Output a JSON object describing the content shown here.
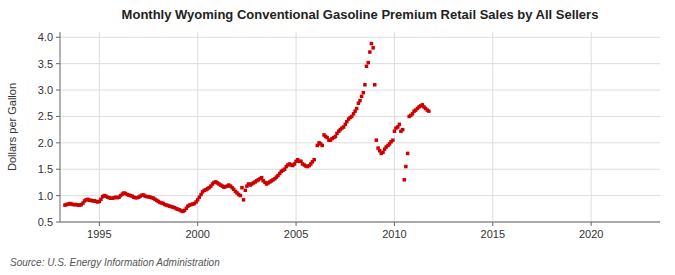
{
  "chart_data": {
    "type": "scatter",
    "title": "Monthly Wyoming Conventional Gasoline Premium Retail Sales by All Sellers",
    "ylabel": "Dollars per Gallon",
    "annotation": "Source: U.S. Energy Information Administration",
    "color": "#cc0000",
    "marker": "square",
    "grid": true,
    "xlim": [
      1993.0,
      2023.5
    ],
    "ylim": [
      0.5,
      4.1
    ],
    "xticks": [
      1995,
      2000,
      2005,
      2010,
      2015,
      2020
    ],
    "yticks": [
      0.5,
      {
        "value": 1.0,
        "label": "1.0"
      },
      1.5,
      {
        "value": 2.0,
        "label": "2.0"
      },
      2.5,
      {
        "value": 3.0,
        "label": "3.0"
      },
      3.5,
      {
        "value": 4.0,
        "label": "4.0"
      }
    ],
    "x": [
      1993.25,
      1993.33,
      1993.42,
      1993.5,
      1993.58,
      1993.67,
      1993.75,
      1993.83,
      1993.92,
      1994.0,
      1994.08,
      1994.17,
      1994.25,
      1994.33,
      1994.42,
      1994.5,
      1994.58,
      1994.67,
      1994.75,
      1994.83,
      1994.92,
      1995.0,
      1995.08,
      1995.17,
      1995.25,
      1995.33,
      1995.42,
      1995.5,
      1995.58,
      1995.67,
      1995.75,
      1995.83,
      1995.92,
      1996.0,
      1996.08,
      1996.17,
      1996.25,
      1996.33,
      1996.42,
      1996.5,
      1996.58,
      1996.67,
      1996.75,
      1996.83,
      1996.92,
      1997.0,
      1997.08,
      1997.17,
      1997.25,
      1997.33,
      1997.42,
      1997.5,
      1997.58,
      1997.67,
      1997.75,
      1997.83,
      1997.92,
      1998.0,
      1998.08,
      1998.17,
      1998.25,
      1998.33,
      1998.42,
      1998.5,
      1998.58,
      1998.67,
      1998.75,
      1998.83,
      1998.92,
      1999.0,
      1999.08,
      1999.17,
      1999.25,
      1999.33,
      1999.42,
      1999.5,
      1999.58,
      1999.67,
      1999.75,
      1999.83,
      1999.92,
      2000.0,
      2000.08,
      2000.17,
      2000.25,
      2000.33,
      2000.42,
      2000.5,
      2000.58,
      2000.67,
      2000.75,
      2000.83,
      2000.92,
      2001.0,
      2001.08,
      2001.17,
      2001.25,
      2001.33,
      2001.42,
      2001.5,
      2001.58,
      2001.67,
      2001.75,
      2001.83,
      2001.92,
      2002.0,
      2002.08,
      2002.17,
      2002.25,
      2002.33,
      2002.42,
      2002.5,
      2002.58,
      2002.67,
      2002.75,
      2002.83,
      2002.92,
      2003.0,
      2003.08,
      2003.17,
      2003.25,
      2003.33,
      2003.42,
      2003.5,
      2003.58,
      2003.67,
      2003.75,
      2003.83,
      2003.92,
      2004.0,
      2004.08,
      2004.17,
      2004.25,
      2004.33,
      2004.42,
      2004.5,
      2004.58,
      2004.67,
      2004.75,
      2004.83,
      2004.92,
      2005.0,
      2005.08,
      2005.17,
      2005.25,
      2005.33,
      2005.42,
      2005.5,
      2005.58,
      2005.67,
      2005.75,
      2005.83,
      2005.92,
      2006.08,
      2006.17,
      2006.25,
      2006.33,
      2006.42,
      2006.5,
      2006.58,
      2006.67,
      2006.75,
      2006.83,
      2006.92,
      2007.0,
      2007.08,
      2007.17,
      2007.25,
      2007.33,
      2007.42,
      2007.5,
      2007.58,
      2007.67,
      2007.75,
      2007.83,
      2007.92,
      2008.0,
      2008.08,
      2008.17,
      2008.25,
      2008.33,
      2008.42,
      2008.5,
      2008.58,
      2008.67,
      2008.75,
      2008.83,
      2008.92,
      2009.0,
      2009.08,
      2009.17,
      2009.25,
      2009.33,
      2009.42,
      2009.5,
      2009.58,
      2009.67,
      2009.75,
      2009.83,
      2009.92,
      2010.0,
      2010.08,
      2010.17,
      2010.25,
      2010.33,
      2010.42,
      2010.5,
      2010.58,
      2010.67,
      2010.75,
      2010.83,
      2010.92,
      2011.0,
      2011.08,
      2011.17,
      2011.25,
      2011.33,
      2011.42,
      2011.5,
      2011.58,
      2011.67,
      2011.75
    ],
    "values": [
      0.82,
      0.83,
      0.84,
      0.85,
      0.84,
      0.83,
      0.83,
      0.83,
      0.82,
      0.82,
      0.83,
      0.86,
      0.9,
      0.92,
      0.93,
      0.91,
      0.91,
      0.9,
      0.9,
      0.89,
      0.88,
      0.89,
      0.93,
      0.98,
      1.0,
      0.99,
      0.97,
      0.96,
      0.95,
      0.95,
      0.96,
      0.97,
      0.96,
      0.97,
      1.0,
      1.03,
      1.05,
      1.04,
      1.02,
      1.01,
      1.0,
      0.99,
      0.97,
      0.96,
      0.96,
      0.97,
      0.99,
      1.01,
      1.01,
      0.99,
      0.98,
      0.98,
      0.97,
      0.96,
      0.95,
      0.93,
      0.91,
      0.89,
      0.87,
      0.86,
      0.85,
      0.83,
      0.82,
      0.81,
      0.8,
      0.79,
      0.78,
      0.77,
      0.75,
      0.74,
      0.73,
      0.71,
      0.7,
      0.72,
      0.76,
      0.8,
      0.82,
      0.83,
      0.84,
      0.85,
      0.88,
      0.92,
      0.97,
      1.02,
      1.07,
      1.1,
      1.11,
      1.13,
      1.15,
      1.18,
      1.22,
      1.25,
      1.26,
      1.24,
      1.22,
      1.2,
      1.18,
      1.16,
      1.17,
      1.18,
      1.2,
      1.18,
      1.15,
      1.12,
      1.08,
      1.05,
      1.02,
      1.0,
      1.15,
      0.92,
      1.1,
      1.18,
      1.22,
      1.2,
      1.22,
      1.24,
      1.26,
      1.28,
      1.3,
      1.32,
      1.34,
      1.28,
      1.25,
      1.22,
      1.24,
      1.26,
      1.28,
      1.3,
      1.32,
      1.35,
      1.38,
      1.42,
      1.46,
      1.48,
      1.5,
      1.55,
      1.58,
      1.6,
      1.58,
      1.57,
      1.6,
      1.65,
      1.68,
      1.65,
      1.65,
      1.6,
      1.58,
      1.56,
      1.55,
      1.57,
      1.6,
      1.64,
      1.68,
      1.95,
      2.0,
      1.98,
      1.95,
      2.15,
      2.12,
      2.1,
      2.05,
      2.05,
      2.08,
      2.1,
      2.12,
      2.18,
      2.22,
      2.25,
      2.28,
      2.3,
      2.35,
      2.4,
      2.45,
      2.48,
      2.5,
      2.55,
      2.6,
      2.65,
      2.75,
      2.8,
      2.88,
      2.95,
      3.1,
      3.45,
      3.52,
      3.72,
      3.88,
      3.8,
      3.1,
      2.05,
      1.9,
      1.85,
      1.8,
      1.82,
      1.88,
      1.92,
      1.95,
      1.98,
      2.02,
      2.05,
      2.22,
      2.28,
      2.3,
      2.35,
      2.22,
      2.25,
      1.3,
      1.55,
      1.8,
      2.5,
      2.52,
      2.55,
      2.6,
      2.62,
      2.65,
      2.68,
      2.7,
      2.72,
      2.68,
      2.65,
      2.62,
      2.6
    ]
  }
}
